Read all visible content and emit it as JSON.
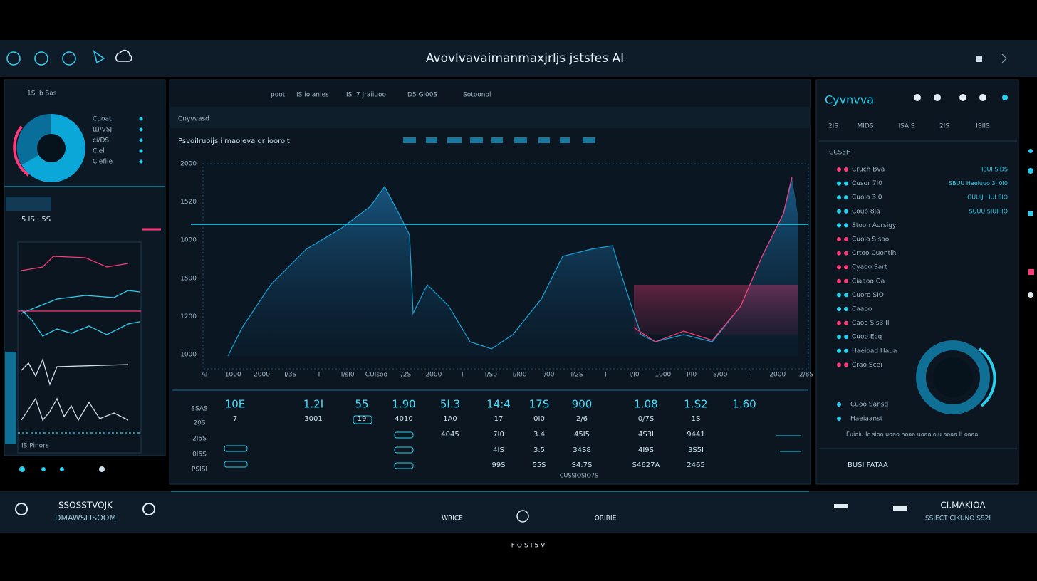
{
  "header": {
    "title": "Avovlvavaimanmaxjrljs jstsfes AI"
  },
  "left_panel": {
    "title": "1S Ib Sas",
    "legend": [
      "Cuoat",
      "Ш/VSJ",
      "ci/DS",
      "Ciel",
      "Clefiie"
    ],
    "stats": "5 IS . 5S",
    "footer": "IS Pinors"
  },
  "center_panel": {
    "tabs": [
      "pooti",
      "IS ioianies",
      "IS I7 Jraiiuoo",
      "D5 Gi00S",
      "Sotoonol"
    ],
    "subtitle": "Cnyvvasd",
    "chart_title": "PsvoiIruoijs i maoleva dr iooroit",
    "y_labels": [
      "2000",
      "1520",
      "1000",
      "1500",
      "1200",
      "1000"
    ],
    "x_labels": [
      "AI",
      "1000",
      "2000",
      "I/3S",
      "I",
      "I/sI0",
      "CUIsoo",
      "I/2S",
      "2000",
      "I",
      "I/S0",
      "I/I00",
      "I/00",
      "I/2S",
      "I",
      "I/I0",
      "1000",
      "I/I0",
      "S/00",
      "I",
      "2000",
      "2/8S"
    ],
    "table": {
      "row_labels": [
        "SSAS",
        "20S",
        "2I5S",
        "0I5S",
        "PSISI"
      ],
      "rows": [
        [
          "10E",
          "1.2I",
          "55",
          "1.90",
          "5I.3",
          "14:4",
          "17S",
          "900",
          "1.08",
          "1.S2",
          "1.60"
        ],
        [
          "7",
          "3001",
          "19",
          "4010",
          "1A0",
          "17",
          "0I0",
          "2/6",
          "0/7S",
          "1S"
        ],
        [
          "4045",
          "7I0",
          "3.4",
          "45I5",
          "4S3I",
          "9441"
        ],
        [
          "4IS",
          "3:5",
          "34S8",
          "4I9S",
          "3S5I"
        ],
        [
          "99S",
          "55S",
          "S4:7S",
          "S4627A",
          "2465"
        ]
      ],
      "note": "CUSSIOSIO7S"
    }
  },
  "right_panel": {
    "title": "Cyvnvva",
    "columns": [
      "2IS",
      "MIDS",
      "ISAIS",
      "2IS",
      "ISIIS"
    ],
    "section": "CCSEH",
    "items": [
      {
        "name": "Cruch Bva",
        "value": "ISUI SIDS",
        "color": "#ff3a78"
      },
      {
        "name": "Cusor 7I0",
        "value": "SBUU Haeiuuo 3I 0I0",
        "color": "#22d3ee"
      },
      {
        "name": "Cuoio 3I0",
        "value": "GUUIJ I IUI SIO",
        "color": "#22d3ee"
      },
      {
        "name": "Couo 8ja",
        "value": "SUUU SIUIJ IO",
        "color": "#22d3ee"
      },
      {
        "name": "Stoon Aorsigy",
        "color": "#22d3ee"
      },
      {
        "name": "Cuoio Sisoo",
        "color": "#ff3a78"
      },
      {
        "name": "Crtoo Cuontih",
        "color": "#ff3a78"
      },
      {
        "name": "Cyaoo Sart",
        "color": "#ff3a78"
      },
      {
        "name": "Ciaaoo Oa",
        "color": "#ff3a78"
      },
      {
        "name": "Cuoro SIO",
        "color": "#22d3ee"
      },
      {
        "name": "Caaoo",
        "color": "#22d3ee"
      },
      {
        "name": "Caoo Sis3 II",
        "color": "#ff3a78"
      },
      {
        "name": "Cuoo Ecq",
        "color": "#22d3ee"
      },
      {
        "name": "Haeioad Haua",
        "color": "#22d3ee"
      },
      {
        "name": "Crao Scei",
        "color": "#ff3a78"
      }
    ],
    "bottom_items": [
      "Cuoo Sansd",
      "Haeiaanst"
    ],
    "caption": "Euioiu Ic sioo uoao hoaa uoaaioiu aoaa II oaaa",
    "action": "BUSI FATAA"
  },
  "bottom_bar": {
    "brand": "SSOSSTVOJK",
    "domain": "DMAWSLISOOM",
    "left_tab": "WRICE",
    "right_tab": "ORIRIE",
    "account": "CI.MAKIOA",
    "account_sub": "SSIECT CIKUNO SS2I"
  },
  "footer": {
    "text": "FOSI5V"
  }
}
